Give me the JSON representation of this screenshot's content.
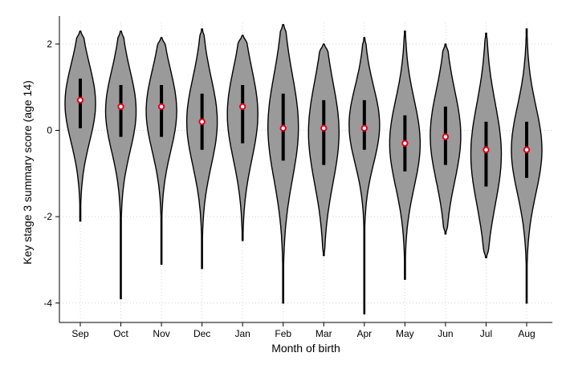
{
  "chart_data": {
    "type": "violin",
    "xlabel": "Month of birth",
    "ylabel": "Key stage 3 summary score (age 14)",
    "ylim": [
      -4.45,
      2.5
    ],
    "yticks": [
      -4,
      -2,
      0,
      2
    ],
    "grid": true,
    "categories": [
      "Sep",
      "Oct",
      "Nov",
      "Dec",
      "Jan",
      "Feb",
      "Mar",
      "Apr",
      "May",
      "Jun",
      "Jul",
      "Aug"
    ],
    "medians": [
      0.7,
      0.55,
      0.55,
      0.2,
      0.55,
      0.05,
      0.05,
      0.05,
      -0.3,
      -0.15,
      -0.45,
      -0.45
    ],
    "q1": [
      0.05,
      -0.15,
      -0.15,
      -0.45,
      -0.3,
      -0.7,
      -0.8,
      -0.45,
      -0.95,
      -0.8,
      -1.3,
      -1.1
    ],
    "q3": [
      1.2,
      1.05,
      1.05,
      0.85,
      1.05,
      0.85,
      0.7,
      0.7,
      0.35,
      0.55,
      0.2,
      0.2
    ],
    "min": [
      -2.1,
      -3.9,
      -3.1,
      -3.2,
      -2.55,
      -4.0,
      -2.9,
      -4.25,
      -3.45,
      -2.4,
      -2.95,
      -4.0
    ],
    "max": [
      2.3,
      2.3,
      2.15,
      2.35,
      2.2,
      2.45,
      2.0,
      2.15,
      2.3,
      2.0,
      2.25,
      2.35
    ]
  }
}
